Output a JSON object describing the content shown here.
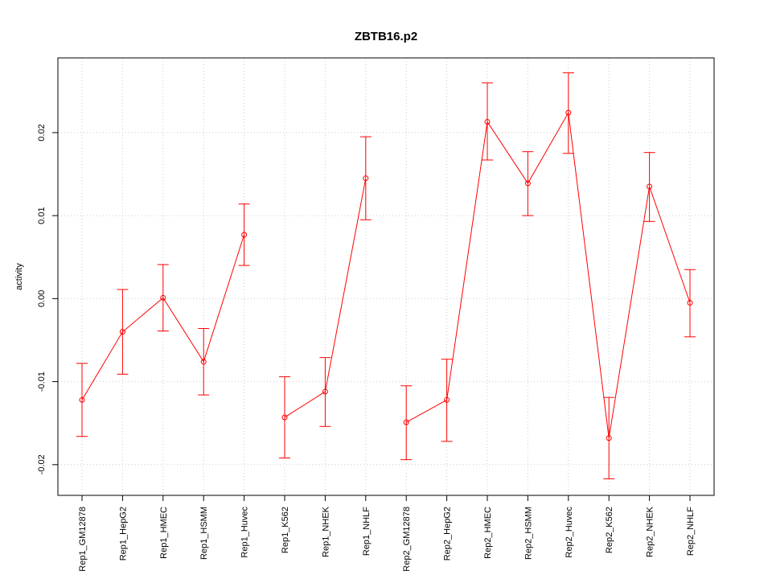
{
  "chart_data": {
    "type": "line",
    "title": "ZBTB16.p2",
    "xlabel": "",
    "ylabel": "activity",
    "ylim": [
      -0.0237,
      0.029
    ],
    "yticks": [
      -0.02,
      -0.01,
      0.0,
      0.01,
      0.02
    ],
    "ytick_labels": [
      "-0.02",
      "-0.01",
      "0.00",
      "0.01",
      "0.02"
    ],
    "grid": true,
    "series_color": "#ff0000",
    "categories": [
      "Rep1_GM12878",
      "Rep1_HepG2",
      "Rep1_HMEC",
      "Rep1_HSMM",
      "Rep1_Huvec",
      "Rep1_K562",
      "Rep1_NHEK",
      "Rep1_NHLF",
      "Rep2_GM12878",
      "Rep2_HepG2",
      "Rep2_HMEC",
      "Rep2_HSMM",
      "Rep2_Huvec",
      "Rep2_K562",
      "Rep2_NHEK",
      "Rep2_NHLF"
    ],
    "values": [
      -0.0122,
      -0.004,
      0.0001,
      -0.0076,
      0.0077,
      -0.0143,
      -0.0112,
      0.0145,
      -0.0149,
      -0.0122,
      0.0213,
      0.0139,
      0.0224,
      -0.0168,
      0.0135,
      -0.0005
    ],
    "error_lower": [
      -0.0166,
      -0.0091,
      -0.0039,
      -0.0116,
      0.004,
      -0.0192,
      -0.0154,
      0.0095,
      -0.0194,
      -0.0172,
      0.0167,
      0.01,
      0.0175,
      -0.0217,
      0.0093,
      -0.0046
    ],
    "error_upper": [
      -0.0078,
      0.0011,
      0.0041,
      -0.0036,
      0.0114,
      -0.0094,
      -0.0071,
      0.0195,
      -0.0105,
      -0.0073,
      0.026,
      0.0177,
      0.0272,
      -0.0119,
      0.0176,
      0.0035
    ],
    "groups": [
      [
        0,
        1,
        2,
        3,
        4
      ],
      [
        5,
        6,
        7
      ],
      [
        8,
        9,
        10,
        11,
        12,
        13,
        14,
        15
      ]
    ]
  }
}
